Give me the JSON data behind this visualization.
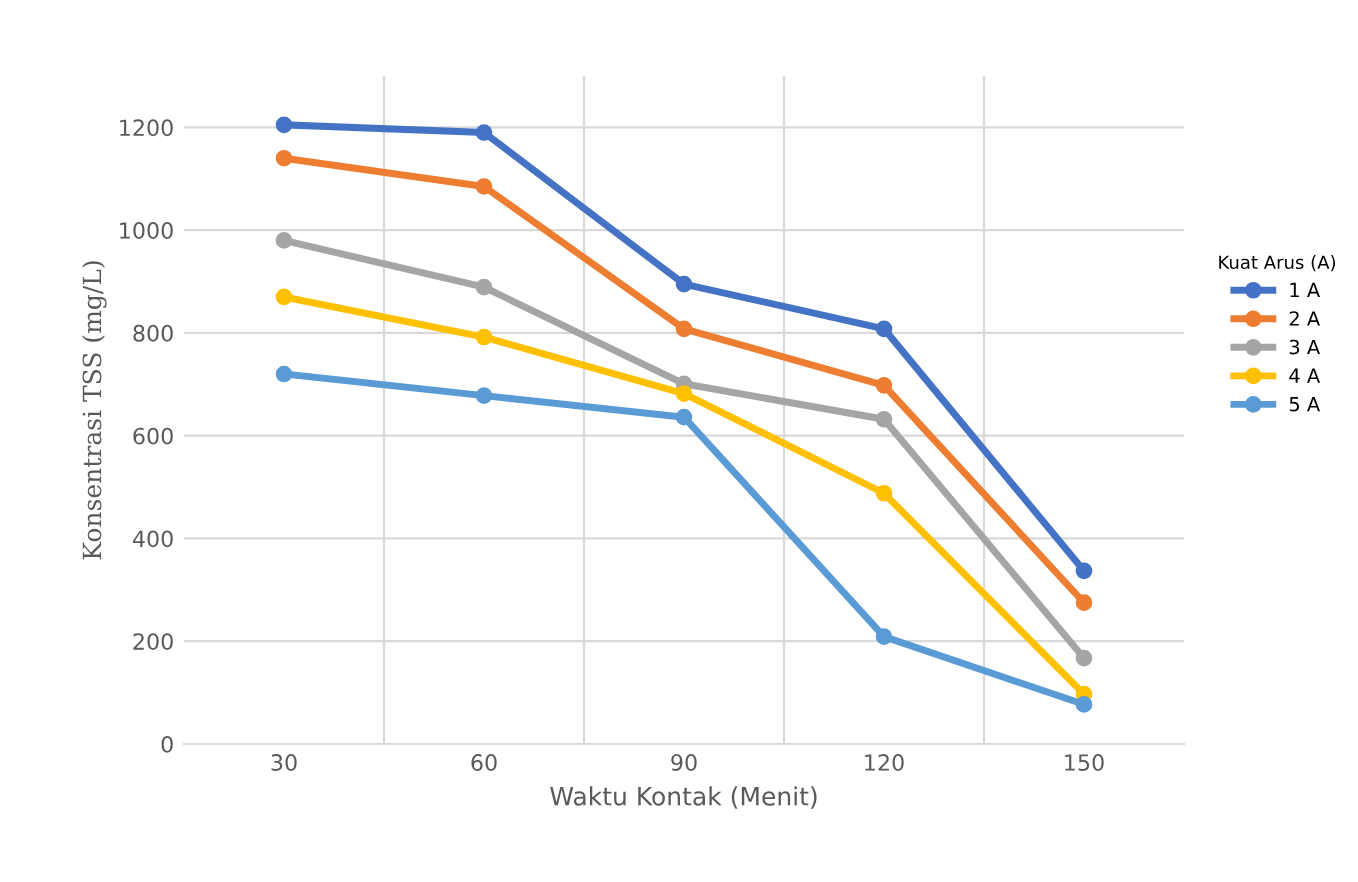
{
  "chart_data": {
    "type": "line",
    "xlabel": "Waktu Kontak (Menit)",
    "ylabel": "Konsentrasi TSS (mg/L)",
    "legend_title": "Kuat Arus (A)",
    "categories": [
      "30",
      "60",
      "90",
      "120",
      "150"
    ],
    "series": [
      {
        "name": "1 A",
        "color": "#4472c4",
        "values": [
          1205,
          1190,
          895,
          808,
          337
        ]
      },
      {
        "name": "2 A",
        "color": "#ed7d31",
        "values": [
          1140,
          1085,
          808,
          698,
          275
        ]
      },
      {
        "name": "3 A",
        "color": "#a5a5a5",
        "values": [
          980,
          889,
          701,
          632,
          167
        ]
      },
      {
        "name": "4 A",
        "color": "#ffc000",
        "values": [
          870,
          792,
          682,
          488,
          97
        ]
      },
      {
        "name": "5 A",
        "color": "#5b9bd5",
        "values": [
          720,
          678,
          636,
          209,
          77
        ]
      }
    ],
    "ylim": [
      0,
      1300
    ],
    "yticks": [
      0,
      200,
      400,
      600,
      800,
      1000,
      1200
    ],
    "grid": true,
    "legend": "right",
    "marker": "circle",
    "line_style": "solid"
  }
}
